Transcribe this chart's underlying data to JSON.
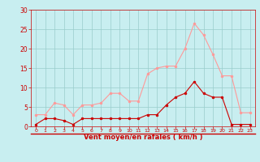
{
  "x": [
    0,
    1,
    2,
    3,
    4,
    5,
    6,
    7,
    8,
    9,
    10,
    11,
    12,
    13,
    14,
    15,
    16,
    17,
    18,
    19,
    20,
    21,
    22,
    23
  ],
  "mean_wind": [
    0.5,
    2,
    2,
    1.5,
    0.5,
    2,
    2,
    2,
    2,
    2,
    2,
    2,
    3,
    3,
    5.5,
    7.5,
    8.5,
    11.5,
    8.5,
    7.5,
    7.5,
    0.5,
    0.5,
    0.5
  ],
  "gusts": [
    3,
    3,
    6,
    5.5,
    3,
    5.5,
    5.5,
    6,
    8.5,
    8.5,
    6.5,
    6.5,
    13.5,
    15,
    15.5,
    15.5,
    20,
    26.5,
    23.5,
    18.5,
    13,
    13,
    3.5,
    3.5
  ],
  "mean_color": "#cc0000",
  "gust_color": "#ff9999",
  "background_color": "#c8eef0",
  "grid_color": "#99cccc",
  "axis_label_color": "#cc0000",
  "tick_color": "#cc0000",
  "xlabel": "Vent moyen/en rafales ( km/h )",
  "ylim": [
    0,
    30
  ],
  "yticks": [
    0,
    5,
    10,
    15,
    20,
    25,
    30
  ],
  "xlim": [
    -0.5,
    23.5
  ]
}
